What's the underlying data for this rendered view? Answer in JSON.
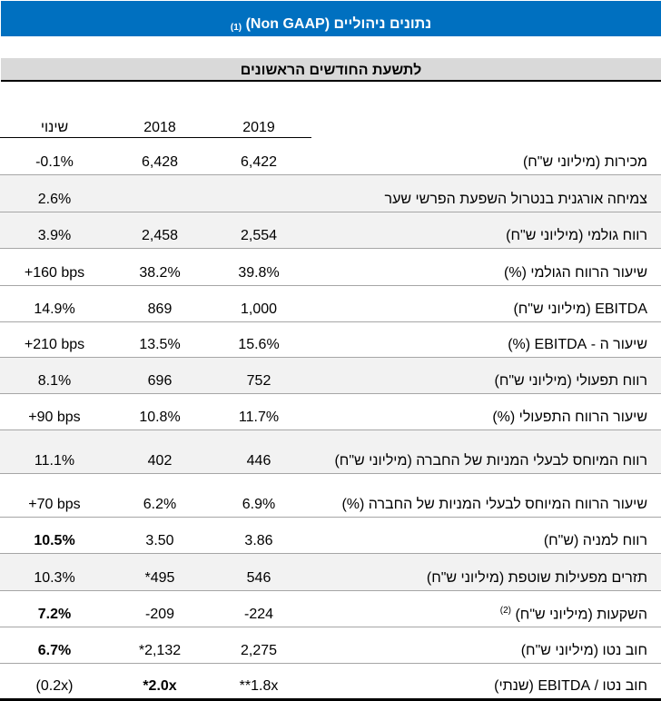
{
  "header": {
    "title": "נתונים ניהוליים (Non GAAP)",
    "title_note": "(1)",
    "period": "לתשעת החודשים הראשונים"
  },
  "columns": {
    "y2019": "2019",
    "y2018": "2018",
    "change": "שינוי"
  },
  "rows": [
    {
      "label": "מכירות (מיליוני ש\"ח)",
      "y2019": "6,422",
      "y2018": "6,428",
      "change": "-0.1%"
    },
    {
      "label": "צמיחה אורגנית בנטרול השפעת הפרשי שער",
      "y2019": "",
      "y2018": "",
      "change": "2.6%"
    },
    {
      "label": "רווח גולמי (מיליוני ש\"ח)",
      "y2019": "2,554",
      "y2018": "2,458",
      "change": "3.9%"
    },
    {
      "label": "שיעור הרווח הגולמי (%)",
      "y2019": "39.8%",
      "y2018": "38.2%",
      "change": "+160 bps"
    },
    {
      "label": "EBITDA (מיליוני ש\"ח)",
      "y2019": "1,000",
      "y2018": "869",
      "change": "14.9%"
    },
    {
      "label": "שיעור ה - EBITDA (%)",
      "y2019": "15.6%",
      "y2018": "13.5%",
      "change": "+210 bps"
    },
    {
      "label": "רווח תפעולי (מיליוני ש\"ח)",
      "y2019": "752",
      "y2018": "696",
      "change": "8.1%"
    },
    {
      "label": "שיעור הרווח התפעולי (%)",
      "y2019": "11.7%",
      "y2018": "10.8%",
      "change": "+90 bps"
    },
    {
      "label": "רווח המיוחס לבעלי המניות של החברה (מיליוני ש\"ח)",
      "y2019": "446",
      "y2018": "402",
      "change": "11.1%"
    },
    {
      "label": "שיעור הרווח המיוחס לבעלי המניות של החברה (%)",
      "y2019": "6.9%",
      "y2018": "6.2%",
      "change": "+70 bps"
    },
    {
      "label": "רווח למניה (ש\"ח)",
      "y2019": "3.86",
      "y2018": "3.50",
      "change": "10.5%"
    },
    {
      "label": "תזרים מפעילות שוטפת (מיליוני ש\"ח)",
      "y2019": "546",
      "y2018": "*495",
      "change": "10.3%"
    },
    {
      "label": "השקעות (מיליוני ש\"ח)",
      "label_note": "(2)",
      "y2019": "-224",
      "y2018": "-209",
      "change": "7.2%"
    },
    {
      "label": "חוב נטו (מיליוני ש\"ח)",
      "y2019": "2,275",
      "y2018": "*2,132",
      "change": "6.7%"
    },
    {
      "label": "חוב נטו / EBITDA (שנתי)",
      "y2019": "**1.8x",
      "y2018": "*2.0x",
      "change": "(0.2x)"
    }
  ]
}
